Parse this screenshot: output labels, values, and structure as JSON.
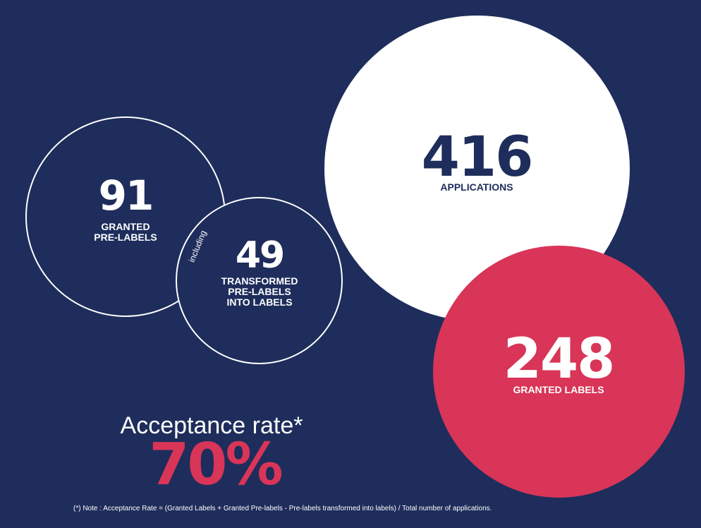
{
  "colors": {
    "background": "#1e2d5b",
    "white": "#ffffff",
    "accent_red": "#d83558"
  },
  "prelabels": {
    "value": "91",
    "label_line1": "GRANTED",
    "label_line2": "PRE-LABELS"
  },
  "connector": {
    "text": "including"
  },
  "transformed": {
    "value": "49",
    "label_line1": "TRANSFORMED",
    "label_line2": "PRE-LABELS",
    "label_line3": "INTO LABELS"
  },
  "applications": {
    "value": "416",
    "label": "APPLICATIONS"
  },
  "granted_labels": {
    "value": "248",
    "label": "GRANTED LABELS"
  },
  "acceptance": {
    "title": "Acceptance rate*",
    "value": "70%"
  },
  "note": "(*) Note : Acceptance Rate = (Granted Labels + Granted Pre-labels - Pre-labels transformed into labels) / Total number of applications."
}
